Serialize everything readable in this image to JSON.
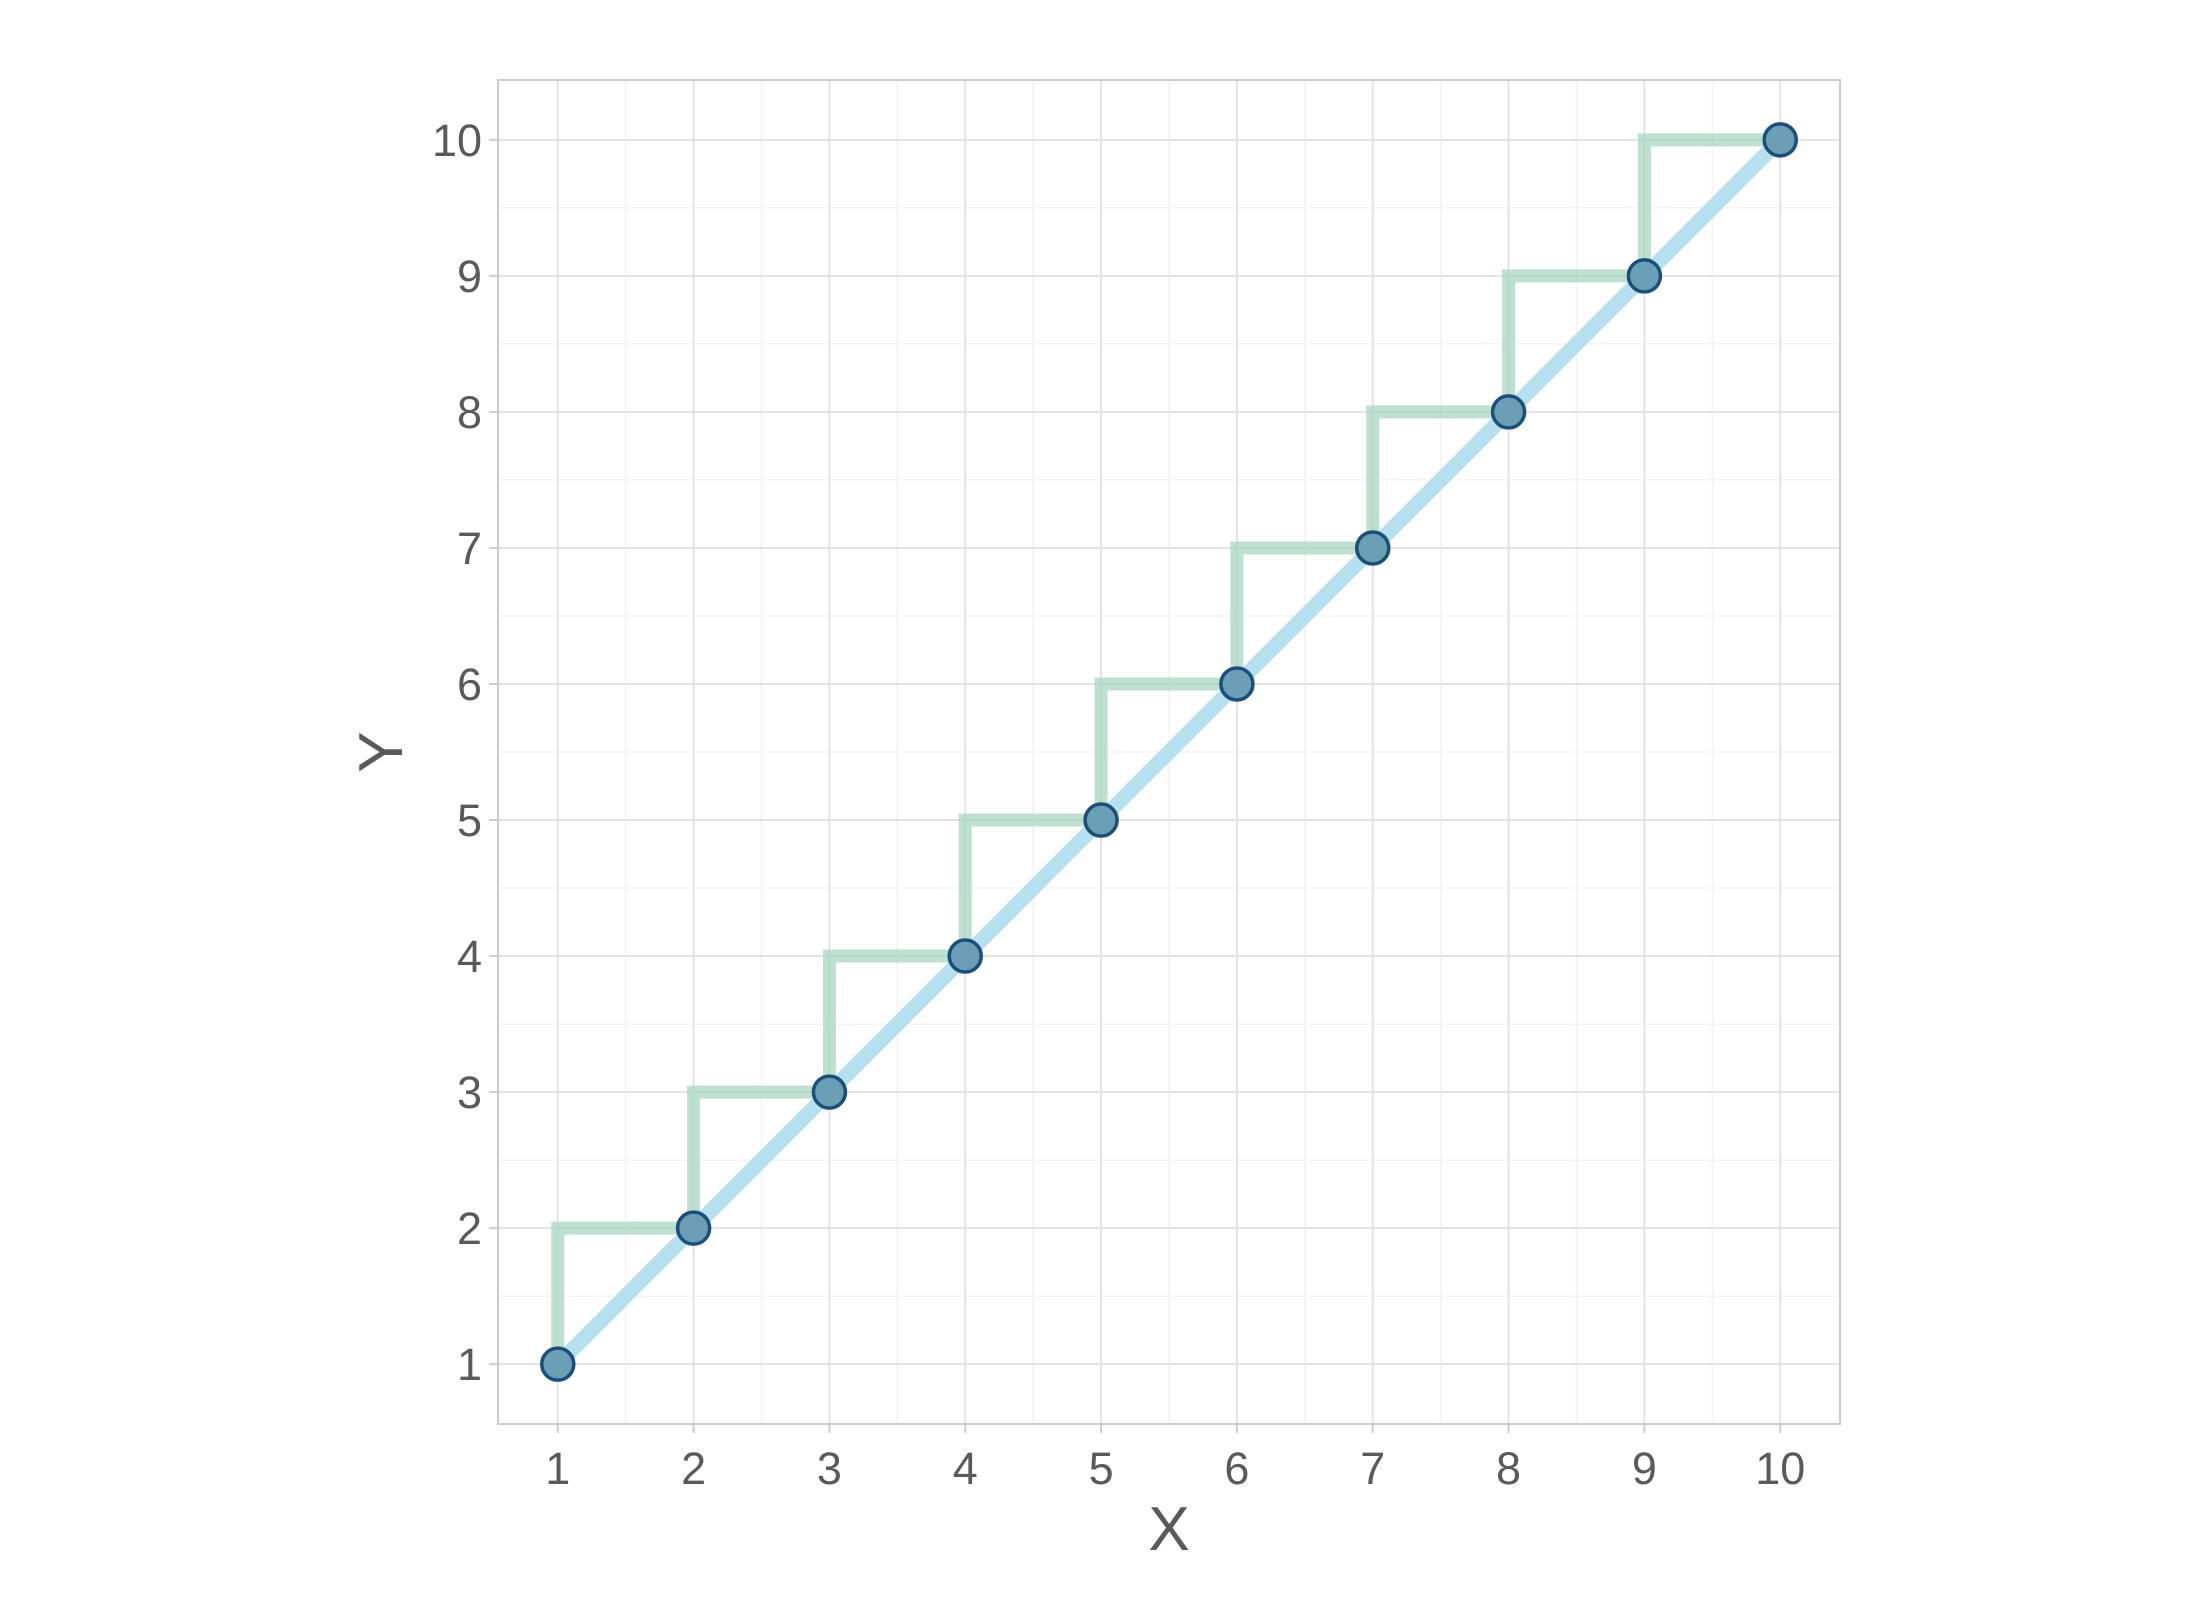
{
  "chart_data": {
    "type": "line",
    "title": "",
    "xlabel": "X",
    "ylabel": "Y",
    "xlim": [
      0.56,
      10.44
    ],
    "ylim": [
      0.56,
      10.44
    ],
    "x_ticks": [
      1,
      2,
      3,
      4,
      5,
      6,
      7,
      8,
      9,
      10
    ],
    "y_ticks": [
      1,
      2,
      3,
      4,
      5,
      6,
      7,
      8,
      9,
      10
    ],
    "grid": true,
    "legend": "none",
    "series": [
      {
        "type": "step",
        "step_direction": "vertical-first",
        "x": [
          1,
          2,
          3,
          4,
          5,
          6,
          7,
          8,
          9,
          10
        ],
        "y": [
          1,
          2,
          3,
          4,
          5,
          6,
          7,
          8,
          9,
          10
        ],
        "color": "#a8d5c2"
      },
      {
        "type": "line",
        "x": [
          1,
          2,
          3,
          4,
          5,
          6,
          7,
          8,
          9,
          10
        ],
        "y": [
          1,
          2,
          3,
          4,
          5,
          6,
          7,
          8,
          9,
          10
        ],
        "color": "#b6dff0"
      },
      {
        "type": "scatter",
        "x": [
          1,
          2,
          3,
          4,
          5,
          6,
          7,
          8,
          9,
          10
        ],
        "y": [
          1,
          2,
          3,
          4,
          5,
          6,
          7,
          8,
          9,
          10
        ],
        "fill_color": "#6a9fb5",
        "edge_color": "#1b4f7a"
      }
    ],
    "colors": {
      "panel_border": "#cccccc",
      "grid_major": "#e3e3e3",
      "grid_minor": "#f3f3f3",
      "text": "#5a5a5a"
    }
  }
}
